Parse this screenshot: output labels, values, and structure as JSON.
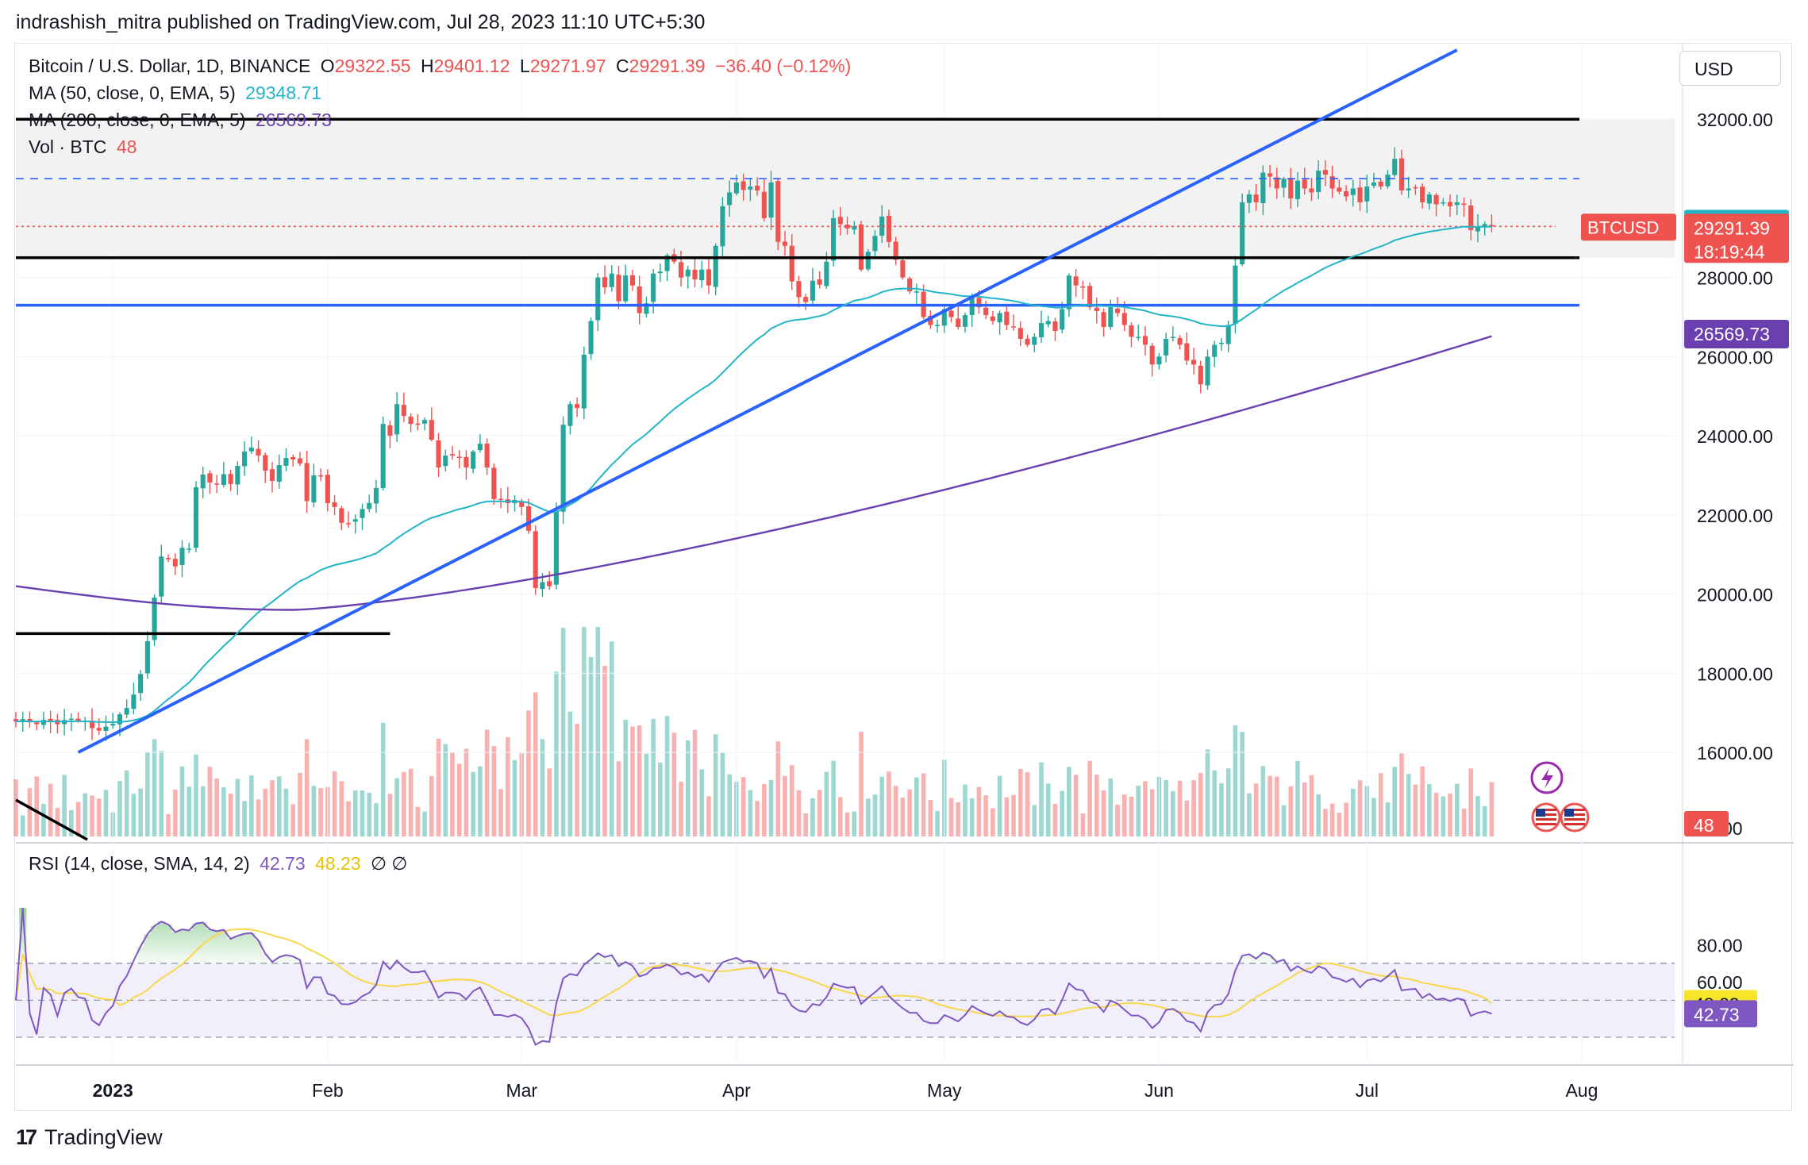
{
  "header": {
    "published": "indrashish_mitra published on TradingView.com, Jul 28, 2023 11:10 UTC+5:30"
  },
  "legend": {
    "symbol": "Bitcoin / U.S. Dollar, 1D, BINANCE",
    "open_label": "O",
    "open": "29322.55",
    "high_label": "H",
    "high": "29401.12",
    "low_label": "L",
    "low": "29271.97",
    "close_label": "C",
    "close": "29291.39",
    "change": "−36.40 (−0.12%)",
    "ma50_label": "MA (50, close, 0, EMA, 5)",
    "ma50_value": "29348.71",
    "ma200_label": "MA (200, close, 0, EMA, 5)",
    "ma200_value": "26569.73",
    "vol_label": "Vol · BTC",
    "vol_value": "48",
    "rsi_label": "RSI (14, close, SMA, 14, 2)",
    "rsi_value": "42.73",
    "rsi_sma_value": "48.23",
    "rsi_extra": "∅  ∅"
  },
  "currency_button": "USD",
  "badges": {
    "ma50": "29348.71",
    "symbol": "BTCUSD",
    "price": "29291.39",
    "countdown": "18:19:44",
    "ma200": "26569.73",
    "volume": "48",
    "rsi_sma": "48.23",
    "rsi": "42.73"
  },
  "footer": {
    "logo_mark": "17",
    "brand": "TradingView"
  },
  "colors": {
    "up": "#26a69a",
    "down": "#ef5350",
    "ma50": "#22b5c8",
    "ma200": "#6a3fb0",
    "trendline": "#2962ff",
    "rsi": "#7e57c2",
    "rsi_sma": "#f7d84a",
    "band": "#f0effb"
  },
  "chart_data": {
    "type": "candlestick",
    "title": "Bitcoin / U.S. Dollar, 1D, BINANCE",
    "y_ticks": [
      16000,
      18000,
      20000,
      22000,
      24000,
      26000,
      28000,
      30000,
      32000
    ],
    "y_tick_labels": [
      "16000.00",
      "18000.00",
      "20000.00",
      "22000.00",
      "24000.00",
      "26000.00",
      "28000.00",
      "",
      "32000.00"
    ],
    "volume_axis_label": "00.00",
    "x_labels": [
      "2023",
      "Feb",
      "Mar",
      "Apr",
      "May",
      "Jun",
      "Jul",
      "Aug"
    ],
    "x_label_dates": [
      "2023-01-01",
      "2023-02-01",
      "2023-03-01",
      "2023-04-01",
      "2023-05-01",
      "2023-06-01",
      "2023-07-01",
      "2023-08-01"
    ],
    "date_range": [
      "2022-12-18",
      "2023-07-28"
    ],
    "closes": [
      16780,
      16840,
      16760,
      16710,
      16820,
      16800,
      16710,
      16820,
      16850,
      16800,
      16790,
      16610,
      16550,
      16650,
      16720,
      16960,
      17120,
      17460,
      17980,
      18810,
      19910,
      20950,
      20880,
      20700,
      21170,
      21150,
      22700,
      23020,
      22820,
      22770,
      23030,
      22780,
      23240,
      23600,
      23700,
      23500,
      23120,
      22860,
      23260,
      23440,
      23400,
      23300,
      22350,
      23000,
      22990,
      22300,
      22200,
      21800,
      21790,
      21890,
      22150,
      22300,
      22680,
      24300,
      24000,
      24800,
      24500,
      24300,
      24300,
      24400,
      23900,
      23200,
      23500,
      23500,
      23450,
      23200,
      23600,
      23800,
      23200,
      22400,
      22400,
      22300,
      22380,
      22200,
      21600,
      20150,
      20300,
      20200,
      22100,
      24280,
      24800,
      24700,
      26050,
      26900,
      28000,
      27750,
      28100,
      27400,
      28050,
      27800,
      27100,
      27350,
      28100,
      28150,
      28560,
      28400,
      28000,
      28200,
      27950,
      28200,
      27800,
      28800,
      29800,
      30150,
      30400,
      30210,
      30300,
      30200,
      29500,
      30400,
      28900,
      28800,
      27900,
      27500,
      27380,
      27920,
      27820,
      28400,
      29500,
      29350,
      29240,
      29300,
      28200,
      28650,
      29050,
      29540,
      28900,
      28450,
      28000,
      27650,
      27650,
      27000,
      26800,
      26800,
      27200,
      27000,
      26750,
      27050,
      27500,
      27250,
      27050,
      26900,
      27100,
      26800,
      26750,
      26450,
      26300,
      26500,
      26850,
      26900,
      26650,
      27200,
      28050,
      27800,
      27750,
      27250,
      27150,
      26750,
      27250,
      27100,
      26800,
      26500,
      26500,
      26300,
      25800,
      26000,
      26450,
      26500,
      26300,
      25900,
      25800,
      25300,
      26000,
      26300,
      26350,
      26800,
      28300,
      29900,
      30100,
      29900,
      30650,
      30550,
      30250,
      30500,
      30000,
      30450,
      30250,
      30150,
      30700,
      30600,
      30250,
      30170,
      30050,
      30250,
      29900,
      30300,
      30400,
      30300,
      30600,
      31000,
      30200,
      30250,
      30280,
      29900,
      30100,
      29850,
      29900,
      29800,
      29900,
      29850,
      29200,
      29300,
      29350,
      29291
    ],
    "ma50_last": 29348.71,
    "ma200_last": 26569.73,
    "last_volume": 48,
    "rsi_last": 42.73,
    "rsi_sma_last": 48.23,
    "rsi_ticks": [
      40,
      60,
      80
    ],
    "rsi_tick_labels": [
      "40.00",
      "60.00",
      "80.00"
    ],
    "rsi_band": [
      30,
      70
    ],
    "horizontal_levels": [
      {
        "value": 32000,
        "style": "solid",
        "color": "#000000"
      },
      {
        "value": 28500,
        "style": "solid",
        "color": "#000000"
      },
      {
        "value": 27300,
        "style": "solid",
        "color": "#2962ff"
      },
      {
        "value": 30500,
        "style": "dashed",
        "color": "#2962ff"
      },
      {
        "value": 29291,
        "style": "dotted",
        "color": "#ef5350"
      },
      {
        "value": 19000,
        "style": "solid",
        "color": "#000000",
        "end_date": "2023-02-10"
      }
    ],
    "trendline": {
      "from": [
        "2022-12-27",
        16000
      ],
      "to": [
        "2023-07-14",
        33750
      ],
      "color": "#2962ff"
    }
  }
}
